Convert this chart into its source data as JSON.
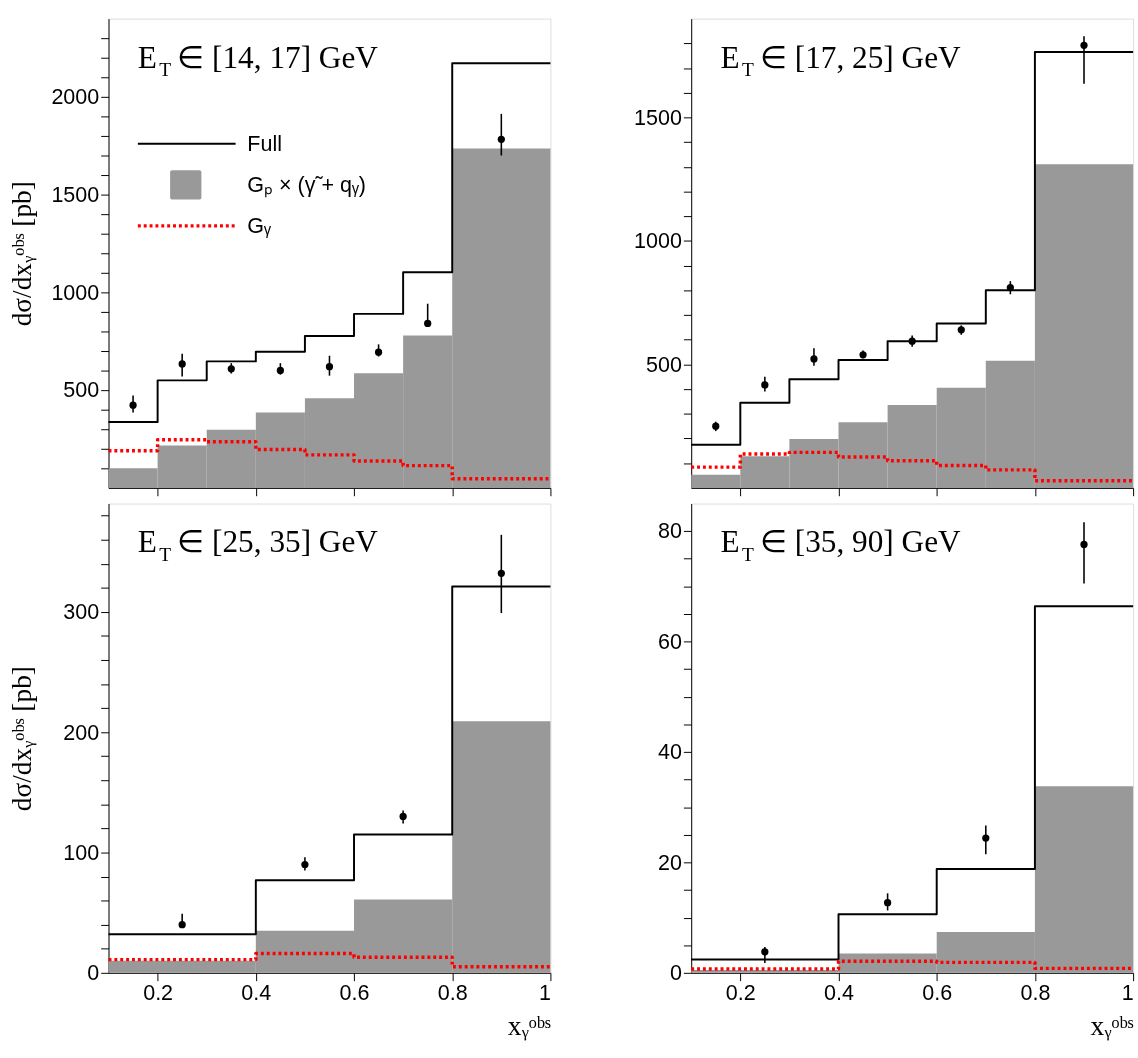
{
  "chart_data": [
    {
      "type": "histogram",
      "title": "E$_{T}$ ∈ [14, 17] GeV",
      "ylabel": "dσ/dxᵧᵒᵇˢ [pb]",
      "bins": [
        0.1,
        0.2,
        0.3,
        0.4,
        0.5,
        0.6,
        0.7,
        0.8,
        1.0
      ],
      "xlim": [
        0.1,
        1
      ],
      "xticks": [
        0.2,
        0.4,
        0.6,
        0.8,
        1
      ],
      "ylim": [
        0,
        2400
      ],
      "yticks": [
        {
          "value": 100,
          "label": null
        },
        {
          "value": 200,
          "label": null
        },
        {
          "value": 300,
          "label": null
        },
        {
          "value": 400,
          "label": null
        },
        500,
        {
          "value": 600,
          "label": null
        },
        {
          "value": 700,
          "label": null
        },
        {
          "value": 800,
          "label": null
        },
        {
          "value": 900,
          "label": null
        },
        1000,
        {
          "value": 1100,
          "label": null
        },
        {
          "value": 1200,
          "label": null
        },
        {
          "value": 1300,
          "label": null
        },
        {
          "value": 1400,
          "label": null
        },
        1500,
        {
          "value": 1600,
          "label": null
        },
        {
          "value": 1700,
          "label": null
        },
        {
          "value": 1800,
          "label": null
        },
        {
          "value": 1900,
          "label": null
        },
        2000,
        {
          "value": 2100,
          "label": null
        },
        {
          "value": 2200,
          "label": null
        },
        {
          "value": 2300,
          "label": null
        }
      ],
      "tick_labels": "y",
      "legend": "top left",
      "series": [
        {
          "name": "Full",
          "type": "step",
          "color": "#000000",
          "line_style": "solid",
          "x": [
            0.1,
            0.2,
            0.3,
            0.4,
            0.5,
            0.6,
            0.7,
            0.8,
            1.0
          ],
          "values": [
            337,
            550,
            647,
            696,
            777,
            890,
            1103,
            2172,
            2172
          ]
        },
        {
          "name": "Gₚ × (γ̃ + qᵧ)",
          "color": "#999999",
          "values": [
            101,
            217,
            297,
            386,
            459,
            587,
            779,
            1736
          ]
        },
        {
          "name": "Gᵧ",
          "type": "step",
          "color": "#ff0000",
          "line_style": "dotted",
          "x": [
            0.1,
            0.2,
            0.3,
            0.4,
            0.5,
            0.6,
            0.7,
            0.8,
            1.0
          ],
          "values": [
            190,
            246,
            236,
            196,
            169,
            138,
            114,
            47,
            47
          ]
        },
        {
          "type": "scatter",
          "color": "#000000",
          "marker": "circle",
          "x": [
            0.15,
            0.25,
            0.35,
            0.45,
            0.55,
            0.65,
            0.75,
            0.9
          ],
          "values": [
            423,
            634,
            609,
            601,
            620,
            694,
            841,
            1783
          ],
          "errors": [
            [
              386,
              473
            ],
            [
              570,
              686
            ],
            [
              585,
              638
            ],
            [
              579,
              638
            ],
            [
              574,
              676
            ],
            [
              672,
              734
            ],
            [
              830,
              942
            ],
            [
              1700,
              1913
            ]
          ]
        }
      ]
    },
    {
      "type": "histogram",
      "title": "E$_{T}$ ∈ [17, 25] GeV",
      "bins": [
        0.1,
        0.2,
        0.3,
        0.4,
        0.5,
        0.6,
        0.7,
        0.8,
        1.0
      ],
      "xlim": [
        0.1,
        1
      ],
      "xticks": [
        0.2,
        0.4,
        0.6,
        0.8,
        1
      ],
      "ylim": [
        0,
        1900
      ],
      "yticks": [
        {
          "value": 100,
          "label": null
        },
        {
          "value": 200,
          "label": null
        },
        {
          "value": 300,
          "label": null
        },
        {
          "value": 400,
          "label": null
        },
        500,
        {
          "value": 600,
          "label": null
        },
        {
          "value": 700,
          "label": null
        },
        {
          "value": 800,
          "label": null
        },
        {
          "value": 900,
          "label": null
        },
        1000,
        {
          "value": 1100,
          "label": null
        },
        {
          "value": 1200,
          "label": null
        },
        {
          "value": 1300,
          "label": null
        },
        {
          "value": 1400,
          "label": null
        },
        1500,
        {
          "value": 1600,
          "label": null
        },
        {
          "value": 1700,
          "label": null
        },
        {
          "value": 1800,
          "label": null
        }
      ],
      "tick_labels": "y",
      "series": [
        {
          "type": "step",
          "color": "#000000",
          "line_style": "solid",
          "x": [
            0.1,
            0.2,
            0.3,
            0.4,
            0.5,
            0.6,
            0.7,
            0.8,
            1.0
          ],
          "values": [
            175,
            345,
            440,
            518,
            594,
            666,
            800,
            1765,
            1765
          ]
        },
        {
          "color": "#999999",
          "values": [
            53,
            128,
            198,
            266,
            336,
            406,
            515,
            1310
          ]
        },
        {
          "type": "step",
          "color": "#ff0000",
          "line_style": "dotted",
          "x": [
            0.1,
            0.2,
            0.3,
            0.4,
            0.5,
            0.6,
            0.7,
            0.8,
            1.0
          ],
          "values": [
            84,
            137,
            144,
            125,
            110,
            91,
            73,
            29,
            29
          ]
        },
        {
          "type": "scatter",
          "color": "#000000",
          "marker": "circle",
          "x": [
            0.15,
            0.25,
            0.35,
            0.45,
            0.55,
            0.65,
            0.75,
            0.9
          ],
          "values": [
            250,
            417,
            522,
            539,
            594,
            640,
            811,
            1792
          ],
          "errors": [
            [
              230,
              268
            ],
            [
              390,
              450
            ],
            [
              495,
              565
            ],
            [
              525,
              556
            ],
            [
              572,
              617
            ],
            [
              620,
              658
            ],
            [
              784,
              837
            ],
            [
              1636,
              1829
            ]
          ]
        }
      ]
    },
    {
      "type": "histogram",
      "title": "E$_{T}$ ∈ [25, 35] GeV",
      "ylabel": "dσ/dxᵧᵒᵇˢ [pb]",
      "xlabel": "xᵧᵒᵇˢ",
      "bins": [
        0.1,
        0.4,
        0.6,
        0.8,
        1.0
      ],
      "xlim": [
        0.1,
        1
      ],
      "xticks": [
        0.2,
        0.4,
        0.6,
        0.8,
        1
      ],
      "ylim": [
        0,
        390
      ],
      "yticks": [
        0,
        {
          "value": 20,
          "label": null
        },
        {
          "value": 40,
          "label": null
        },
        {
          "value": 60,
          "label": null
        },
        {
          "value": 80,
          "label": null
        },
        100,
        {
          "value": 120,
          "label": null
        },
        {
          "value": 140,
          "label": null
        },
        {
          "value": 160,
          "label": null
        },
        {
          "value": 180,
          "label": null
        },
        200,
        {
          "value": 220,
          "label": null
        },
        {
          "value": 240,
          "label": null
        },
        {
          "value": 260,
          "label": null
        },
        {
          "value": 280,
          "label": null
        },
        300,
        {
          "value": 320,
          "label": null
        },
        {
          "value": 340,
          "label": null
        },
        {
          "value": 360,
          "label": null
        },
        {
          "value": 380,
          "label": null
        }
      ],
      "series": [
        {
          "type": "step",
          "color": "#000000",
          "line_style": "solid",
          "x": [
            0.1,
            0.4,
            0.6,
            0.8,
            1.0
          ],
          "values": [
            32,
            77,
            115,
            321,
            321
          ]
        },
        {
          "color": "#999999",
          "values": [
            10,
            35,
            61,
            209
          ]
        },
        {
          "type": "step",
          "color": "#ff0000",
          "line_style": "dotted",
          "x": [
            0.1,
            0.4,
            0.6,
            0.8,
            1.0
          ],
          "values": [
            11,
            16,
            13,
            5,
            5
          ]
        },
        {
          "type": "scatter",
          "color": "#000000",
          "marker": "circle",
          "x": [
            0.25,
            0.5,
            0.7,
            0.9
          ],
          "values": [
            40,
            90,
            130,
            332
          ],
          "errors": [
            [
              38,
              49
            ],
            [
              85,
              96
            ],
            [
              124,
              135
            ],
            [
              299,
              364
            ]
          ]
        }
      ]
    },
    {
      "type": "histogram",
      "title": "E$_{T}$ ∈ [35, 90] GeV",
      "xlabel": "xᵧᵒᵇˢ",
      "bins": [
        0.1,
        0.4,
        0.6,
        0.8,
        1.0
      ],
      "xlim": [
        0.1,
        1
      ],
      "xticks": [
        0.2,
        0.4,
        0.6,
        0.8,
        1
      ],
      "ylim": [
        0,
        85
      ],
      "yticks": [
        0,
        {
          "value": 5,
          "label": null
        },
        {
          "value": 10,
          "label": null
        },
        {
          "value": 15,
          "label": null
        },
        20,
        {
          "value": 25,
          "label": null
        },
        {
          "value": 30,
          "label": null
        },
        {
          "value": 35,
          "label": null
        },
        40,
        {
          "value": 45,
          "label": null
        },
        {
          "value": 50,
          "label": null
        },
        {
          "value": 55,
          "label": null
        },
        60,
        {
          "value": 65,
          "label": null
        },
        {
          "value": 70,
          "label": null
        },
        {
          "value": 75,
          "label": null
        },
        80
      ],
      "series": [
        {
          "type": "step",
          "color": "#000000",
          "line_style": "solid",
          "x": [
            0.1,
            0.4,
            0.6,
            0.8,
            1.0
          ],
          "values": [
            2.4,
            10.6,
            18.8,
            66.4,
            66.4
          ]
        },
        {
          "color": "#999999",
          "values": [
            0.5,
            3.5,
            7.4,
            33.8
          ]
        },
        {
          "type": "step",
          "color": "#ff0000",
          "line_style": "dotted",
          "x": [
            0.1,
            0.4,
            0.6,
            0.8,
            1.0
          ],
          "values": [
            0.7,
            2.1,
            1.9,
            0.8,
            0.8
          ]
        },
        {
          "type": "scatter",
          "color": "#000000",
          "marker": "circle",
          "x": [
            0.25,
            0.5,
            0.7,
            0.9
          ],
          "values": [
            3.8,
            12.7,
            24.4,
            77.6
          ],
          "errors": [
            [
              1.8,
              4.7
            ],
            [
              11.3,
              14.4
            ],
            [
              21.5,
              26.7
            ],
            [
              70.5,
              81.6
            ]
          ]
        }
      ]
    }
  ]
}
